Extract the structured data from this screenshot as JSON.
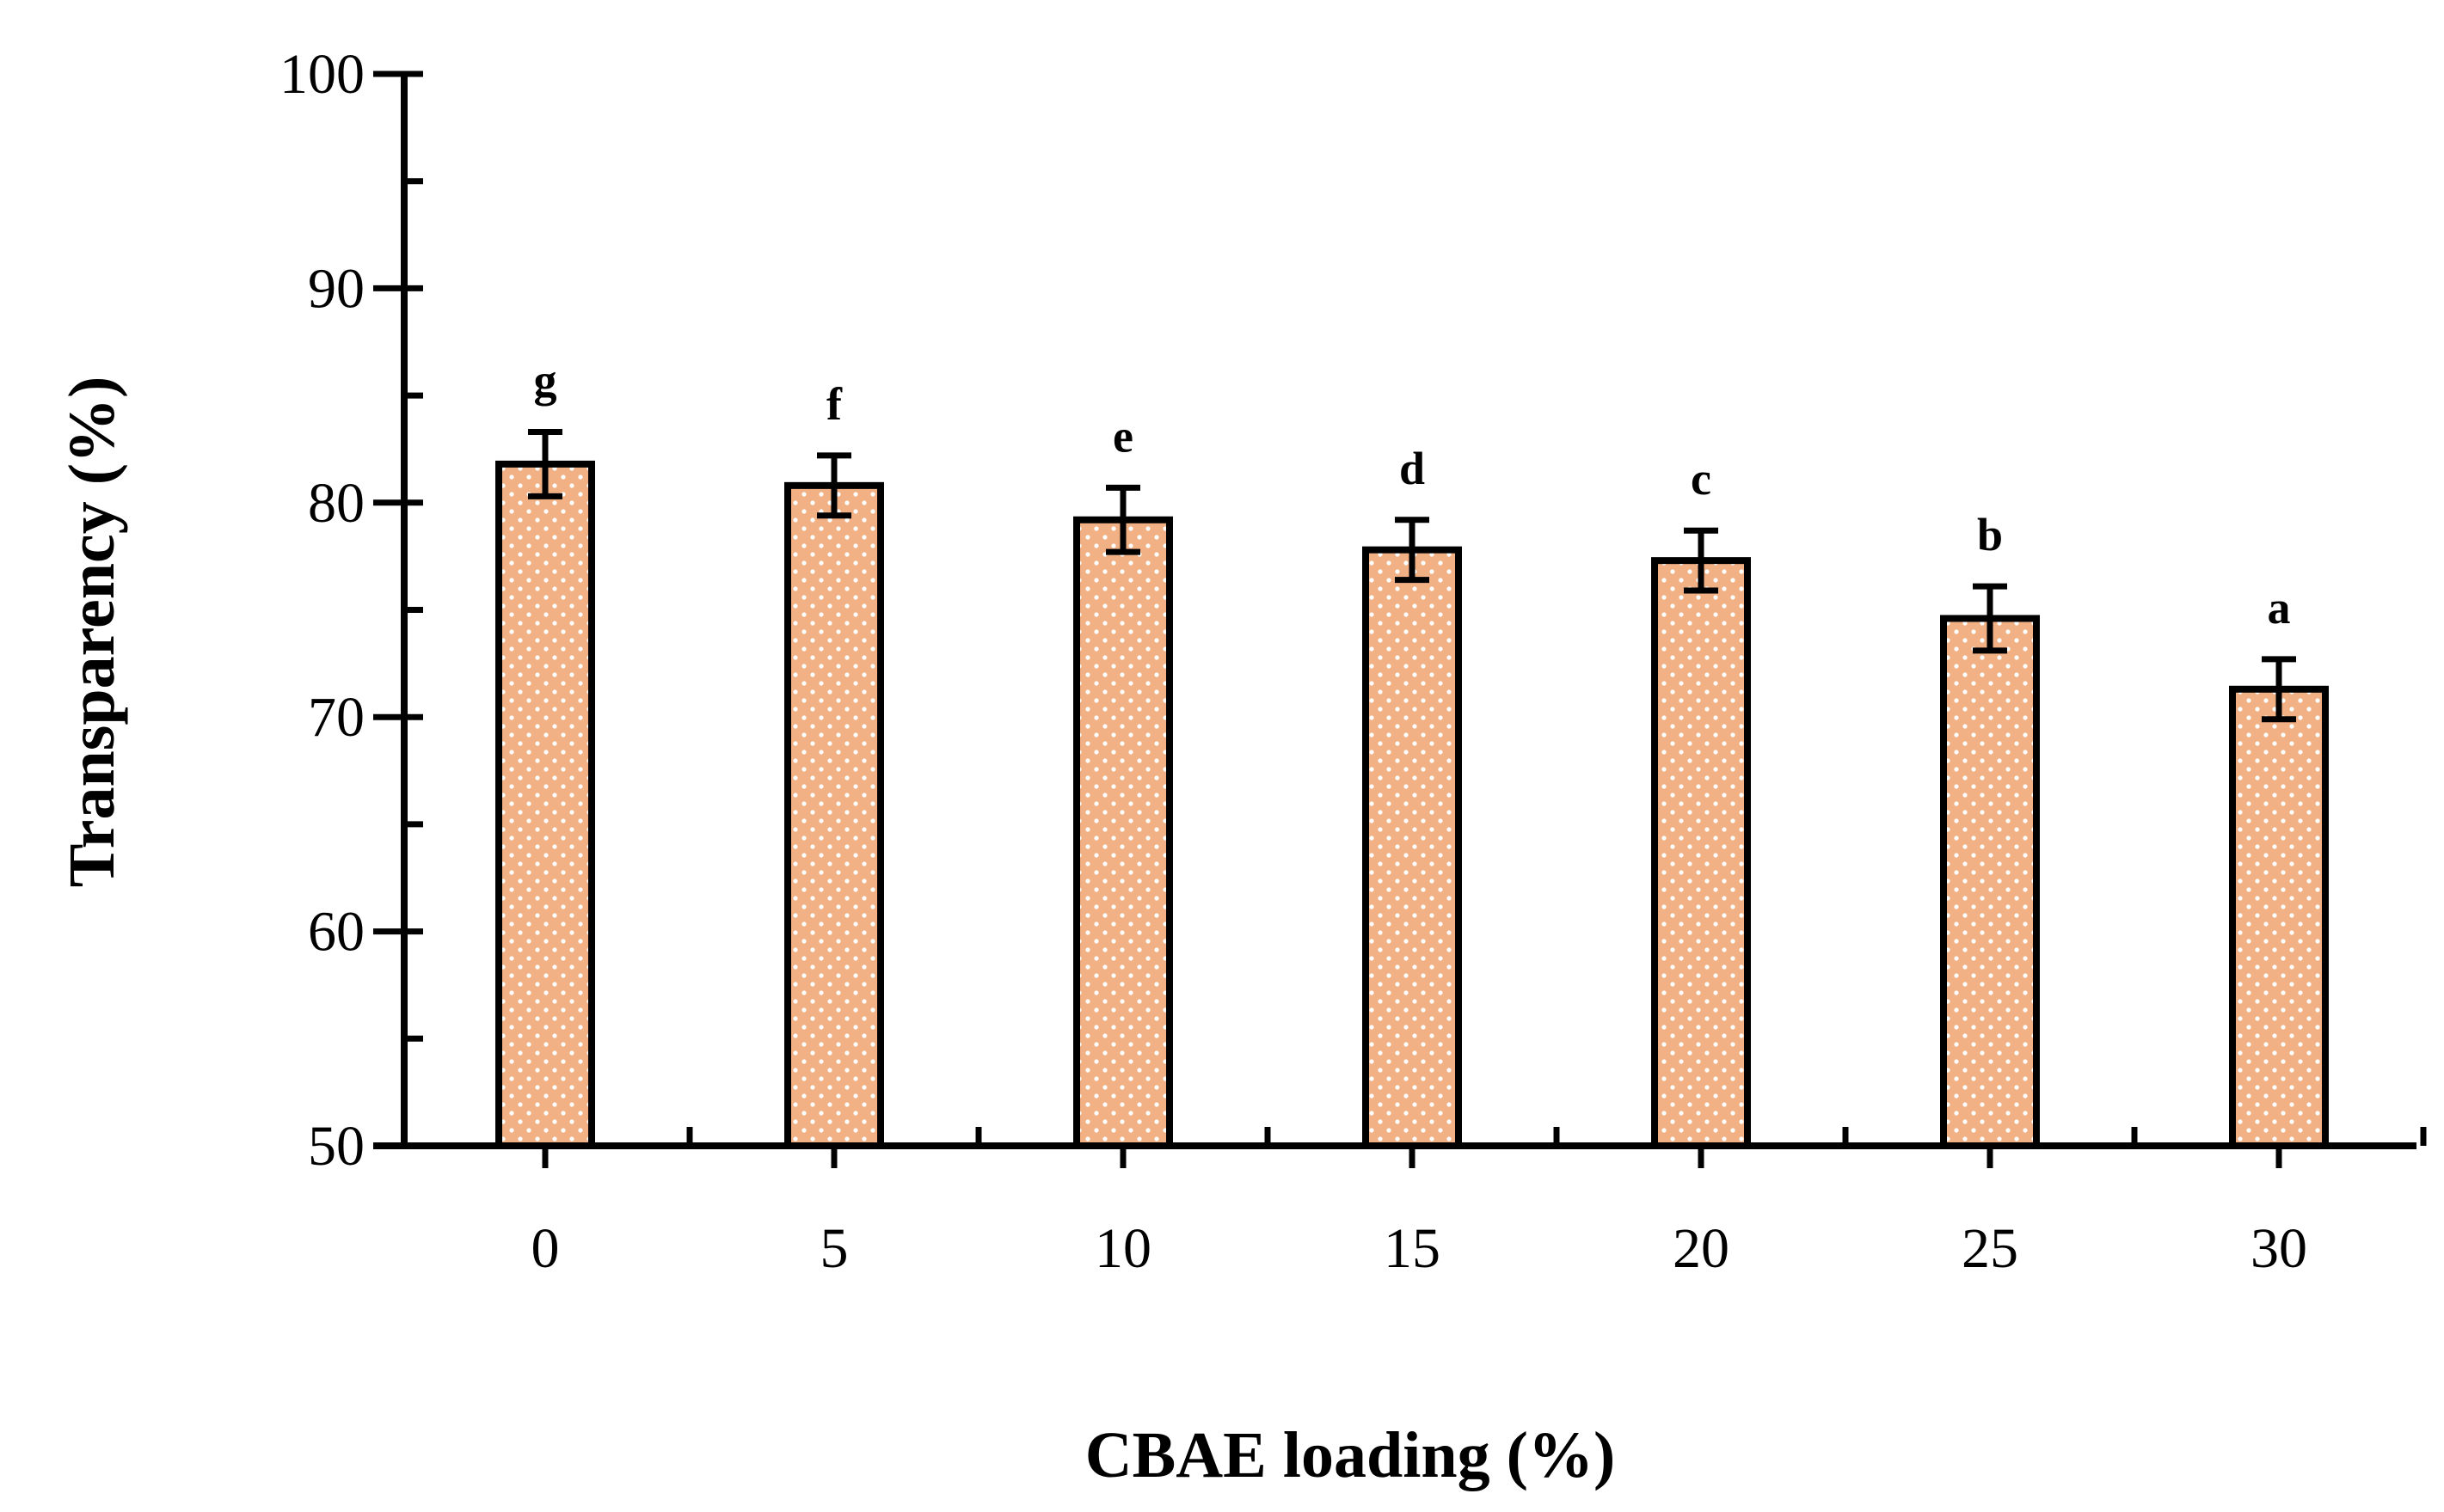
{
  "chart_data": {
    "type": "bar",
    "xlabel": "CBAE loading (%)",
    "ylabel": "Transparency (%)",
    "categories": [
      "0",
      "5",
      "10",
      "15",
      "20",
      "25",
      "30"
    ],
    "values": [
      81.8,
      80.8,
      79.2,
      77.8,
      77.3,
      74.6,
      71.3
    ],
    "errors": [
      1.5,
      1.4,
      1.5,
      1.4,
      1.4,
      1.5,
      1.4
    ],
    "significance_labels": [
      "g",
      "f",
      "e",
      "d",
      "c",
      "b",
      "a"
    ],
    "ylim": [
      50,
      100
    ],
    "yticks": [
      50,
      60,
      70,
      80,
      90,
      100
    ],
    "yticks_minor_step": 5,
    "grid": false,
    "legend": "none",
    "colors": {
      "bar_fill": "#f2b185",
      "bar_dots": "#ffffff",
      "bar_stroke": "#000000",
      "axis": "#000000"
    }
  }
}
